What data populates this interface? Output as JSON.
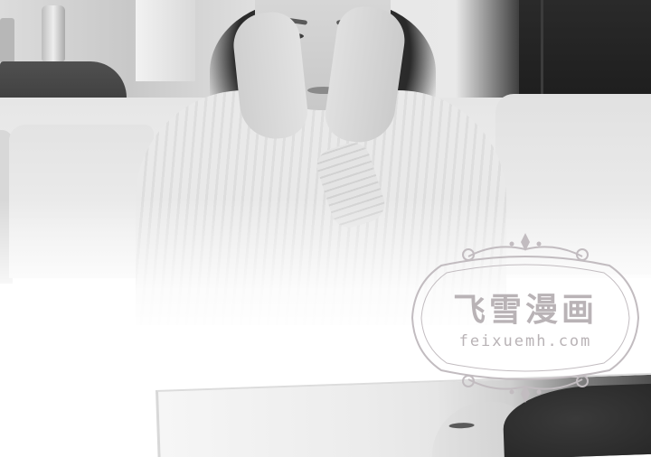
{
  "image": {
    "kind": "comic-panel-photo",
    "tone": "grayscale"
  },
  "watermark": {
    "title": "飞雪漫画",
    "url": "feixuemh.com",
    "color": "#b9b3b6"
  }
}
